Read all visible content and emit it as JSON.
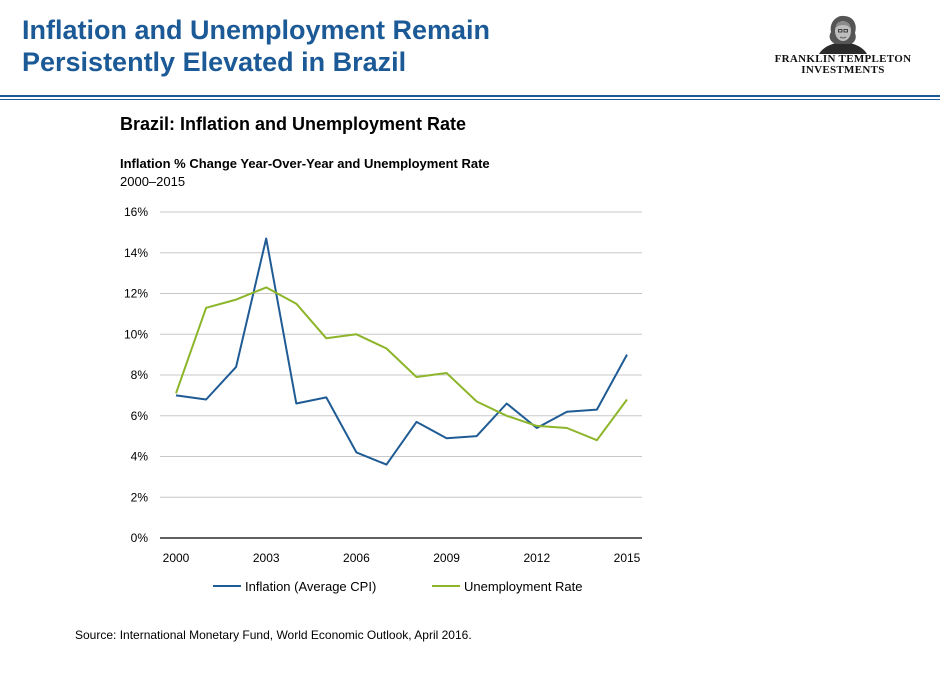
{
  "header": {
    "title_line1": "Inflation and Unemployment Remain",
    "title_line2": "Persistently Elevated in Brazil",
    "logo_line1": "FRANKLIN TEMPLETON",
    "logo_line2": "INVESTMENTS"
  },
  "colors": {
    "title": "#1b5a96",
    "rule": "#1b5a96",
    "inflation": "#1f5b94",
    "unemployment": "#8db52a",
    "gridline": "#c8c8c8",
    "axis": "#000000"
  },
  "chart_data": {
    "type": "line",
    "title": "Brazil: Inflation and Unemployment Rate",
    "subtitle": "Inflation % Change Year-Over-Year and Unemployment Rate",
    "period": "2000–2015",
    "x": [
      2000,
      2001,
      2002,
      2003,
      2004,
      2005,
      2006,
      2007,
      2008,
      2009,
      2010,
      2011,
      2012,
      2013,
      2014,
      2015
    ],
    "x_ticks": [
      2000,
      2003,
      2006,
      2009,
      2012,
      2015
    ],
    "xlim": [
      2000,
      2015
    ],
    "ylim": [
      0,
      16
    ],
    "y_ticks": [
      0,
      2,
      4,
      6,
      8,
      10,
      12,
      14,
      16
    ],
    "y_tick_labels": [
      "0%",
      "2%",
      "4%",
      "6%",
      "8%",
      "10%",
      "12%",
      "14%",
      "16%"
    ],
    "grid": true,
    "legend_position": "bottom",
    "series": [
      {
        "name": "Inflation (Average CPI)",
        "color": "#1f5b94",
        "values": [
          7.0,
          6.8,
          8.4,
          14.7,
          6.6,
          6.9,
          4.2,
          3.6,
          5.7,
          4.9,
          5.0,
          6.6,
          5.4,
          6.2,
          6.3,
          9.0
        ]
      },
      {
        "name": "Unemployment Rate",
        "color": "#8db52a",
        "values": [
          7.1,
          11.3,
          11.7,
          12.3,
          11.5,
          9.8,
          10.0,
          9.3,
          7.9,
          8.1,
          6.7,
          6.0,
          5.5,
          5.4,
          4.8,
          6.8
        ]
      }
    ]
  },
  "footer": {
    "source": "Source: International Monetary Fund, World Economic Outlook, April 2016."
  }
}
